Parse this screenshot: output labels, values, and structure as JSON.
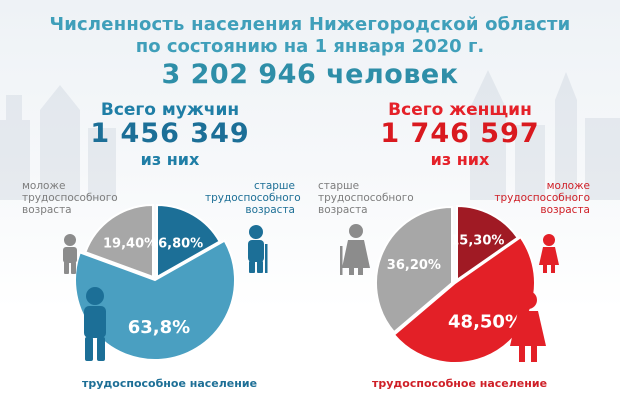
{
  "title_line1": "Численность населения Нижегородской области",
  "title_line2": "по состоянию на 1 января 2020 г.",
  "total": "3 202 946 человек",
  "men": {
    "heading": "Всего мужчин",
    "count": "1 456 349",
    "of_them": "из них",
    "younger_label": [
      "моложе",
      "трудоспособного",
      "возраста"
    ],
    "older_label": [
      "старше",
      "трудоспособного",
      "возраста"
    ],
    "working_label": "трудоспособное население"
  },
  "women": {
    "heading": "Всего женщин",
    "count": "1 746 597",
    "of_them": "из них",
    "older_label": [
      "старше",
      "трудоспособного",
      "возраста"
    ],
    "younger_label": [
      "моложе",
      "трудоспособного",
      "возраста"
    ],
    "working_label": "трудоспособное население"
  },
  "colors": {
    "men_working": "#4a9fc1",
    "men_older": "#1c6f97",
    "grey": "#a7a7a7",
    "women_working": "#e32027",
    "women_younger": "#a01a24",
    "title": "#3f9fba"
  },
  "chart_data": [
    {
      "type": "pie",
      "series": "men",
      "slices": [
        {
          "label": "старше трудоспособного возраста",
          "value": 16.8,
          "display": "16,80%"
        },
        {
          "label": "трудоспособное население",
          "value": 63.8,
          "display": "63,8%"
        },
        {
          "label": "моложе трудоспособного возраста",
          "value": 19.4,
          "display": "19,40%"
        }
      ]
    },
    {
      "type": "pie",
      "series": "women",
      "slices": [
        {
          "label": "моложе трудоспособного возраста",
          "value": 15.3,
          "display": "15,30%"
        },
        {
          "label": "трудоспособное население",
          "value": 48.5,
          "display": "48,50%"
        },
        {
          "label": "старше трудоспособного возраста",
          "value": 36.2,
          "display": "36,20%"
        }
      ]
    }
  ]
}
